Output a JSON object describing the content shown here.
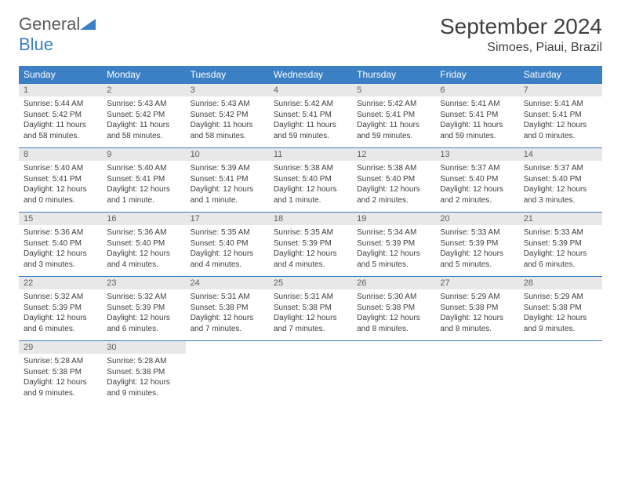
{
  "brand": {
    "name1": "General",
    "name2": "Blue"
  },
  "title": "September 2024",
  "location": "Simoes, Piaui, Brazil",
  "colors": {
    "header_bg": "#3b7fc4",
    "header_text": "#ffffff",
    "daynum_bg": "#e8e8e8",
    "text": "#404040",
    "rule": "#3b7fc4"
  },
  "day_names": [
    "Sunday",
    "Monday",
    "Tuesday",
    "Wednesday",
    "Thursday",
    "Friday",
    "Saturday"
  ],
  "weeks": [
    [
      {
        "n": "1",
        "sr": "Sunrise: 5:44 AM",
        "ss": "Sunset: 5:42 PM",
        "dl": "Daylight: 11 hours and 58 minutes."
      },
      {
        "n": "2",
        "sr": "Sunrise: 5:43 AM",
        "ss": "Sunset: 5:42 PM",
        "dl": "Daylight: 11 hours and 58 minutes."
      },
      {
        "n": "3",
        "sr": "Sunrise: 5:43 AM",
        "ss": "Sunset: 5:42 PM",
        "dl": "Daylight: 11 hours and 58 minutes."
      },
      {
        "n": "4",
        "sr": "Sunrise: 5:42 AM",
        "ss": "Sunset: 5:41 PM",
        "dl": "Daylight: 11 hours and 59 minutes."
      },
      {
        "n": "5",
        "sr": "Sunrise: 5:42 AM",
        "ss": "Sunset: 5:41 PM",
        "dl": "Daylight: 11 hours and 59 minutes."
      },
      {
        "n": "6",
        "sr": "Sunrise: 5:41 AM",
        "ss": "Sunset: 5:41 PM",
        "dl": "Daylight: 11 hours and 59 minutes."
      },
      {
        "n": "7",
        "sr": "Sunrise: 5:41 AM",
        "ss": "Sunset: 5:41 PM",
        "dl": "Daylight: 12 hours and 0 minutes."
      }
    ],
    [
      {
        "n": "8",
        "sr": "Sunrise: 5:40 AM",
        "ss": "Sunset: 5:41 PM",
        "dl": "Daylight: 12 hours and 0 minutes."
      },
      {
        "n": "9",
        "sr": "Sunrise: 5:40 AM",
        "ss": "Sunset: 5:41 PM",
        "dl": "Daylight: 12 hours and 1 minute."
      },
      {
        "n": "10",
        "sr": "Sunrise: 5:39 AM",
        "ss": "Sunset: 5:41 PM",
        "dl": "Daylight: 12 hours and 1 minute."
      },
      {
        "n": "11",
        "sr": "Sunrise: 5:38 AM",
        "ss": "Sunset: 5:40 PM",
        "dl": "Daylight: 12 hours and 1 minute."
      },
      {
        "n": "12",
        "sr": "Sunrise: 5:38 AM",
        "ss": "Sunset: 5:40 PM",
        "dl": "Daylight: 12 hours and 2 minutes."
      },
      {
        "n": "13",
        "sr": "Sunrise: 5:37 AM",
        "ss": "Sunset: 5:40 PM",
        "dl": "Daylight: 12 hours and 2 minutes."
      },
      {
        "n": "14",
        "sr": "Sunrise: 5:37 AM",
        "ss": "Sunset: 5:40 PM",
        "dl": "Daylight: 12 hours and 3 minutes."
      }
    ],
    [
      {
        "n": "15",
        "sr": "Sunrise: 5:36 AM",
        "ss": "Sunset: 5:40 PM",
        "dl": "Daylight: 12 hours and 3 minutes."
      },
      {
        "n": "16",
        "sr": "Sunrise: 5:36 AM",
        "ss": "Sunset: 5:40 PM",
        "dl": "Daylight: 12 hours and 4 minutes."
      },
      {
        "n": "17",
        "sr": "Sunrise: 5:35 AM",
        "ss": "Sunset: 5:40 PM",
        "dl": "Daylight: 12 hours and 4 minutes."
      },
      {
        "n": "18",
        "sr": "Sunrise: 5:35 AM",
        "ss": "Sunset: 5:39 PM",
        "dl": "Daylight: 12 hours and 4 minutes."
      },
      {
        "n": "19",
        "sr": "Sunrise: 5:34 AM",
        "ss": "Sunset: 5:39 PM",
        "dl": "Daylight: 12 hours and 5 minutes."
      },
      {
        "n": "20",
        "sr": "Sunrise: 5:33 AM",
        "ss": "Sunset: 5:39 PM",
        "dl": "Daylight: 12 hours and 5 minutes."
      },
      {
        "n": "21",
        "sr": "Sunrise: 5:33 AM",
        "ss": "Sunset: 5:39 PM",
        "dl": "Daylight: 12 hours and 6 minutes."
      }
    ],
    [
      {
        "n": "22",
        "sr": "Sunrise: 5:32 AM",
        "ss": "Sunset: 5:39 PM",
        "dl": "Daylight: 12 hours and 6 minutes."
      },
      {
        "n": "23",
        "sr": "Sunrise: 5:32 AM",
        "ss": "Sunset: 5:39 PM",
        "dl": "Daylight: 12 hours and 6 minutes."
      },
      {
        "n": "24",
        "sr": "Sunrise: 5:31 AM",
        "ss": "Sunset: 5:38 PM",
        "dl": "Daylight: 12 hours and 7 minutes."
      },
      {
        "n": "25",
        "sr": "Sunrise: 5:31 AM",
        "ss": "Sunset: 5:38 PM",
        "dl": "Daylight: 12 hours and 7 minutes."
      },
      {
        "n": "26",
        "sr": "Sunrise: 5:30 AM",
        "ss": "Sunset: 5:38 PM",
        "dl": "Daylight: 12 hours and 8 minutes."
      },
      {
        "n": "27",
        "sr": "Sunrise: 5:29 AM",
        "ss": "Sunset: 5:38 PM",
        "dl": "Daylight: 12 hours and 8 minutes."
      },
      {
        "n": "28",
        "sr": "Sunrise: 5:29 AM",
        "ss": "Sunset: 5:38 PM",
        "dl": "Daylight: 12 hours and 9 minutes."
      }
    ],
    [
      {
        "n": "29",
        "sr": "Sunrise: 5:28 AM",
        "ss": "Sunset: 5:38 PM",
        "dl": "Daylight: 12 hours and 9 minutes."
      },
      {
        "n": "30",
        "sr": "Sunrise: 5:28 AM",
        "ss": "Sunset: 5:38 PM",
        "dl": "Daylight: 12 hours and 9 minutes."
      },
      null,
      null,
      null,
      null,
      null
    ]
  ]
}
